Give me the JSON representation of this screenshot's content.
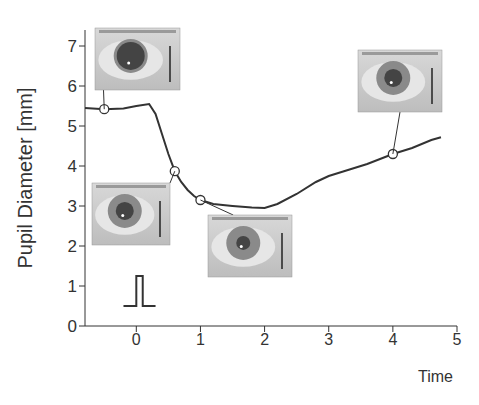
{
  "chart_data": {
    "type": "line",
    "x_label": "Time",
    "y_label": "Pupil Diameter [mm]",
    "xlim": [
      -0.8,
      5
    ],
    "xticks": [
      0,
      1,
      2,
      3,
      4,
      5
    ],
    "ylim": [
      0,
      7.4
    ],
    "yticks": [
      0,
      1,
      2,
      3,
      4,
      5,
      6,
      7
    ],
    "grid": false,
    "series": [
      {
        "type": "line",
        "color": "#333333",
        "line_style": "solid",
        "x": [
          -0.8,
          -0.5,
          -0.2,
          0,
          0.2,
          0.3,
          0.4,
          0.5,
          0.6,
          0.7,
          0.8,
          0.9,
          1.0,
          1.2,
          1.5,
          1.8,
          2.0,
          2.2,
          2.5,
          2.8,
          3.0,
          3.3,
          3.6,
          4.0,
          4.3,
          4.6,
          4.75
        ],
        "values": [
          5.45,
          5.42,
          5.44,
          5.5,
          5.55,
          5.3,
          4.8,
          4.3,
          3.87,
          3.6,
          3.4,
          3.25,
          3.15,
          3.05,
          3.0,
          2.96,
          2.95,
          3.05,
          3.3,
          3.6,
          3.75,
          3.9,
          4.05,
          4.3,
          4.45,
          4.65,
          4.72
        ]
      },
      {
        "type": "line",
        "color": "#333333",
        "line_style": "solid",
        "x": [
          -0.2,
          0,
          0,
          0.1,
          0.1,
          0.3
        ],
        "values": [
          0.5,
          0.5,
          1.25,
          1.25,
          0.5,
          0.5
        ]
      },
      {
        "type": "scatter",
        "color": "#333333",
        "marker": "circle",
        "x": [
          -0.5,
          0.6,
          1.0,
          4.0
        ],
        "values": [
          5.42,
          3.87,
          3.15,
          4.3
        ]
      }
    ]
  }
}
